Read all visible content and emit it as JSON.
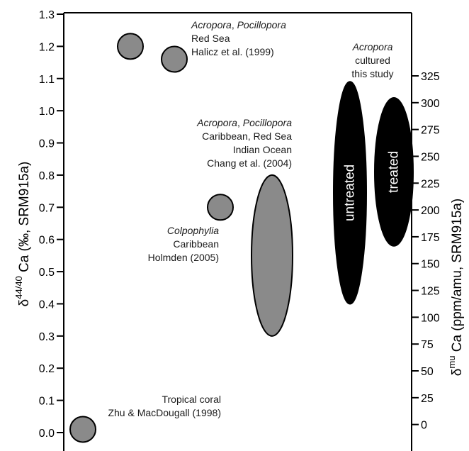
{
  "colors": {
    "gray_marker": "#8a8a8a",
    "black_marker": "#000000",
    "outline": "#000000"
  },
  "chart_data": {
    "type": "scatter",
    "title": "",
    "y_left": {
      "label_base": "δ",
      "label_sup": "44/40",
      "label_rest": " Ca (‰, SRM915a)",
      "ylim": [
        0.0,
        1.3
      ],
      "ticks": [
        "0.0",
        "0.1",
        "0.2",
        "0.3",
        "0.4",
        "0.5",
        "0.6",
        "0.7",
        "0.8",
        "0.9",
        "1.0",
        "1.1",
        "1.2",
        "1.3"
      ]
    },
    "y_right": {
      "label_base": "δ",
      "label_sup": "mu",
      "label_rest": " Ca (ppm/amu, SRM915a)",
      "ylim": [
        -7.5,
        382.5
      ],
      "ticks": [
        "0",
        "25",
        "50",
        "75",
        "100",
        "125",
        "150",
        "175",
        "200",
        "225",
        "250",
        "275",
        "300",
        "325"
      ]
    },
    "grid": false,
    "points": [
      {
        "name": "halicz-1",
        "shape": "circle",
        "color": "gray",
        "y": 1.2
      },
      {
        "name": "halicz-2",
        "shape": "circle",
        "color": "gray",
        "y": 1.16
      },
      {
        "name": "holmden",
        "shape": "circle",
        "color": "gray",
        "y": 0.7
      },
      {
        "name": "zhu",
        "shape": "circle",
        "color": "gray",
        "y": 0.01
      },
      {
        "name": "chang-range",
        "shape": "ellipse",
        "color": "gray",
        "y_min": 0.3,
        "y_max": 0.8
      },
      {
        "name": "untreated-range",
        "shape": "ellipse",
        "color": "black",
        "y_min": 0.4,
        "y_max": 1.09,
        "label": "untreated"
      },
      {
        "name": "treated-range",
        "shape": "ellipse",
        "color": "black",
        "y_min": 0.58,
        "y_max": 1.04,
        "label": "treated"
      }
    ],
    "annotations": [
      {
        "name": "annotation-halicz",
        "lines": [
          "Acropora, Pocillopora",
          "Red Sea",
          "Halicz et al. (1999)"
        ]
      },
      {
        "name": "annotation-chang",
        "lines": [
          "Acropora, Pocillopora",
          "Caribbean, Red Sea",
          "Indian Ocean",
          "Chang et al. (2004)"
        ]
      },
      {
        "name": "annotation-holmden",
        "lines": [
          "Colpophylia",
          "Caribbean",
          "Holmden (2005)"
        ]
      },
      {
        "name": "annotation-zhu",
        "lines": [
          "Tropical coral",
          "Zhu & MacDougall (1998)"
        ]
      },
      {
        "name": "annotation-cultured",
        "lines": [
          "Acropora",
          "cultured",
          "this study"
        ]
      }
    ]
  }
}
